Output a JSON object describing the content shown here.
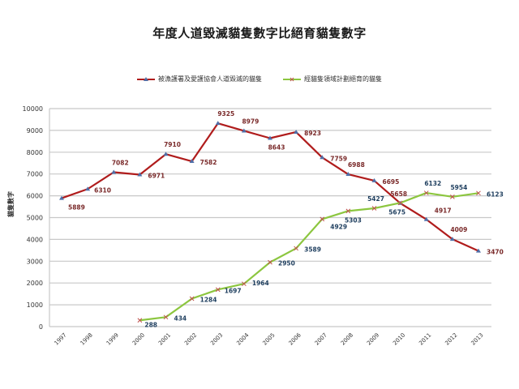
{
  "chart_data": {
    "type": "line",
    "title": "年度人道毀滅貓隻數字比絕育貓隻數字",
    "xlabel": "",
    "ylabel": "貓隻數字",
    "ylim": [
      0,
      10000
    ],
    "yticks": [
      0,
      1000,
      2000,
      3000,
      4000,
      5000,
      6000,
      7000,
      8000,
      9000,
      10000
    ],
    "grid": true,
    "legend_position": "top",
    "categories": [
      "1997",
      "1998",
      "1999",
      "2000",
      "2001",
      "2002",
      "2003",
      "2004",
      "2005",
      "2006",
      "2007",
      "2008",
      "2009",
      "2010",
      "2011",
      "2012",
      "2013"
    ],
    "series": [
      {
        "name": "被漁護署及愛護協會人道毀滅的貓隻",
        "color": "#b01c1c",
        "marker": "triangle",
        "marker_color": "#4f6fa8",
        "label_color": "#7a2a2a",
        "values": [
          5889,
          6310,
          7082,
          6971,
          7910,
          7582,
          9325,
          8979,
          8643,
          8923,
          7759,
          6988,
          6695,
          5658,
          4917,
          4009,
          3470
        ]
      },
      {
        "name": "經貓隻領域計劃絕育的貓隻",
        "color": "#8cc63f",
        "marker": "x",
        "marker_color": "#c0504d",
        "label_color": "#1f3f5f",
        "values": [
          null,
          null,
          null,
          288,
          434,
          1284,
          1697,
          1964,
          2950,
          3589,
          4929,
          5303,
          5427,
          5675,
          6132,
          5954,
          6123
        ]
      }
    ]
  },
  "legend": {
    "series1": "被漁護署及愛護協會人道毀滅的貓隻",
    "series2": "經貓隻領域計劃絕育的貓隻"
  }
}
